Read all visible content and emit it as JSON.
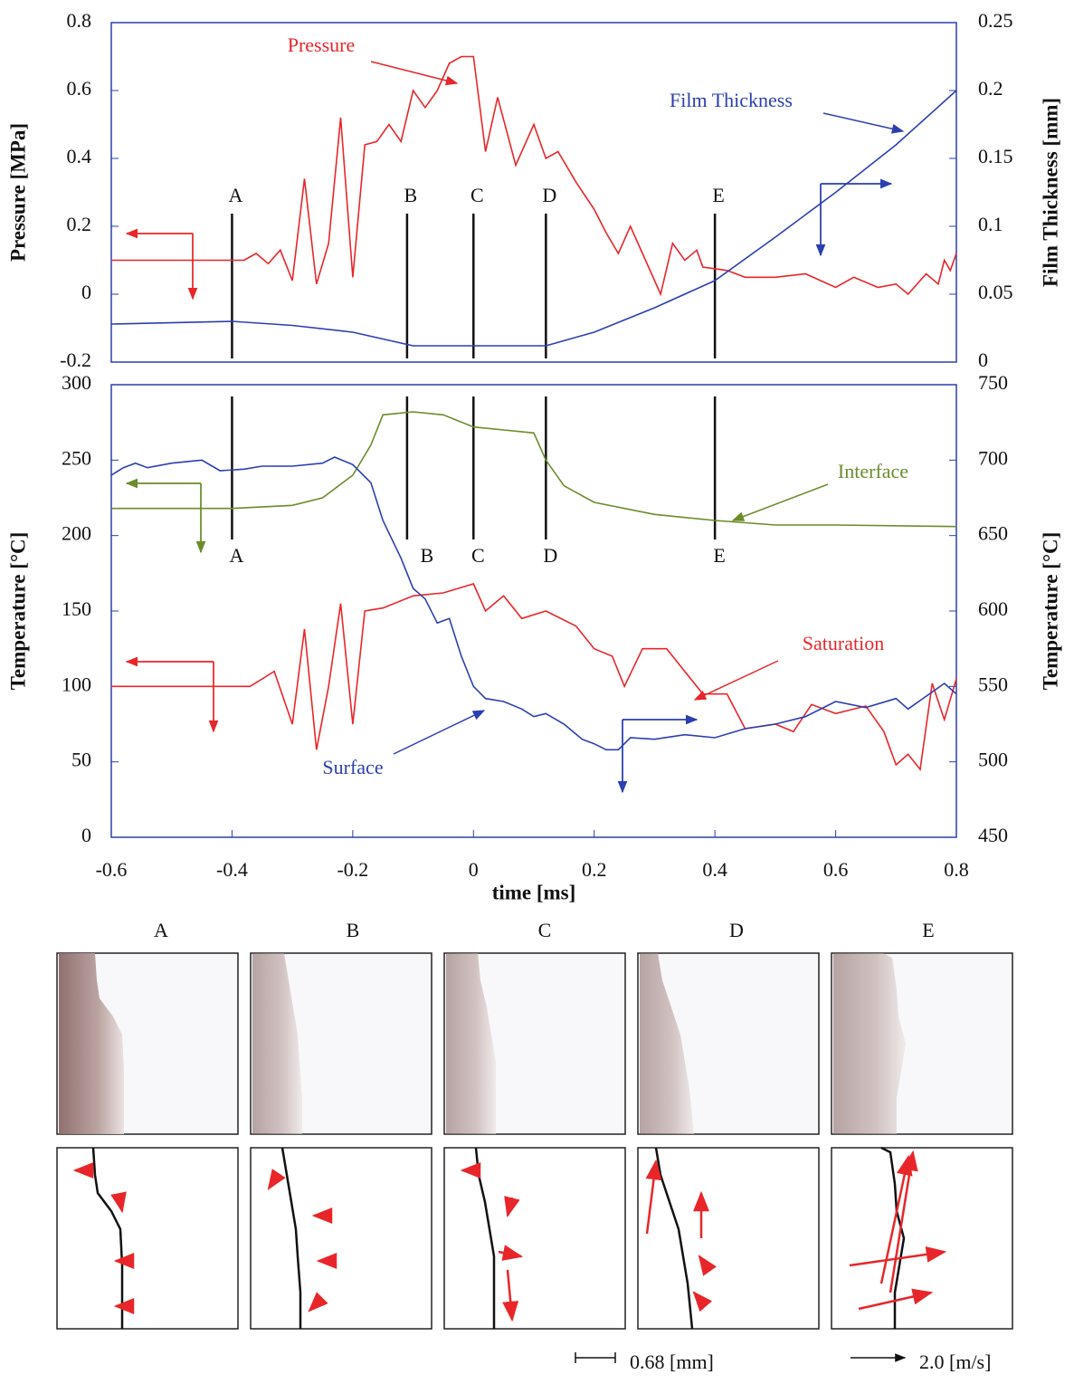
{
  "chart_data": [
    {
      "type": "line",
      "ylabel": "Pressure [MPa]",
      "y2label": "Film Thickness [mm]",
      "xlim": [
        -0.6,
        0.8
      ],
      "ylim": [
        -0.2,
        0.8
      ],
      "yticks": [
        -0.2,
        0,
        0.2,
        0.4,
        0.6,
        0.8
      ],
      "y2lim": [
        0,
        0.25
      ],
      "y2ticks": [
        0,
        0.05,
        0.1,
        0.15,
        0.2,
        0.25
      ],
      "markers": {
        "labels": [
          "A",
          "B",
          "C",
          "D",
          "E"
        ],
        "x": [
          -0.4,
          -0.11,
          0,
          0.12,
          0.4
        ]
      },
      "series": [
        {
          "name": "Pressure",
          "color": "#e8262a",
          "axis": "y",
          "x": [
            -0.6,
            -0.4,
            -0.38,
            -0.36,
            -0.34,
            -0.32,
            -0.3,
            -0.28,
            -0.26,
            -0.24,
            -0.22,
            -0.2,
            -0.18,
            -0.16,
            -0.14,
            -0.12,
            -0.1,
            -0.08,
            -0.06,
            -0.04,
            -0.02,
            0,
            0.02,
            0.04,
            0.07,
            0.1,
            0.12,
            0.14,
            0.17,
            0.2,
            0.22,
            0.24,
            0.26,
            0.28,
            0.31,
            0.33,
            0.35,
            0.37,
            0.38,
            0.42,
            0.45,
            0.5,
            0.55,
            0.6,
            0.63,
            0.67,
            0.7,
            0.72,
            0.75,
            0.77,
            0.78,
            0.79,
            0.8
          ],
          "values": [
            0.1,
            0.1,
            0.1,
            0.12,
            0.09,
            0.13,
            0.04,
            0.34,
            0.03,
            0.15,
            0.52,
            0.05,
            0.44,
            0.45,
            0.5,
            0.45,
            0.6,
            0.55,
            0.6,
            0.68,
            0.7,
            0.7,
            0.42,
            0.58,
            0.38,
            0.5,
            0.4,
            0.42,
            0.33,
            0.25,
            0.18,
            0.12,
            0.2,
            0.12,
            0,
            0.15,
            0.1,
            0.13,
            0.08,
            0.07,
            0.05,
            0.05,
            0.06,
            0.02,
            0.05,
            0.02,
            0.03,
            0,
            0.06,
            0.03,
            0.1,
            0.07,
            0.12
          ]
        },
        {
          "name": "Film Thickness",
          "color": "#2b3fb0",
          "axis": "y2",
          "x": [
            -0.6,
            -0.4,
            -0.3,
            -0.2,
            -0.1,
            0,
            0.12,
            0.2,
            0.3,
            0.4,
            0.5,
            0.6,
            0.7,
            0.8
          ],
          "values": [
            0.028,
            0.03,
            0.027,
            0.022,
            0.012,
            0.012,
            0.012,
            0.022,
            0.04,
            0.06,
            0.092,
            0.125,
            0.16,
            0.2
          ]
        }
      ]
    },
    {
      "type": "line",
      "ylabel": "Temperature [°C]",
      "y2label": "Temperature [°C]",
      "xlabel": "time [ms]",
      "xlim": [
        -0.6,
        0.8
      ],
      "xticks": [
        -0.6,
        -0.4,
        -0.2,
        0,
        0.2,
        0.4,
        0.6,
        0.8
      ],
      "ylim": [
        0,
        300
      ],
      "yticks": [
        0,
        50,
        100,
        150,
        200,
        250,
        300
      ],
      "y2lim": [
        450,
        750
      ],
      "y2ticks": [
        450,
        500,
        550,
        600,
        650,
        700,
        750
      ],
      "markers": {
        "labels": [
          "A",
          "B",
          "C",
          "D",
          "E"
        ],
        "x": [
          -0.4,
          -0.11,
          0,
          0.12,
          0.4
        ]
      },
      "series": [
        {
          "name": "Interface",
          "color": "#6b8c2a",
          "axis": "y2",
          "x": [
            -0.6,
            -0.4,
            -0.3,
            -0.25,
            -0.2,
            -0.17,
            -0.15,
            -0.1,
            -0.05,
            0,
            0.05,
            0.1,
            0.12,
            0.15,
            0.2,
            0.3,
            0.4,
            0.5,
            0.6,
            0.8
          ],
          "values": [
            668,
            668,
            670,
            675,
            690,
            710,
            730,
            732,
            730,
            722,
            720,
            718,
            700,
            683,
            672,
            664,
            660,
            657,
            657,
            656
          ]
        },
        {
          "name": "Saturation",
          "color": "#e8262a",
          "axis": "y",
          "x": [
            -0.6,
            -0.37,
            -0.35,
            -0.33,
            -0.3,
            -0.28,
            -0.26,
            -0.24,
            -0.22,
            -0.2,
            -0.18,
            -0.15,
            -0.1,
            -0.05,
            0,
            0.02,
            0.05,
            0.08,
            0.12,
            0.17,
            0.2,
            0.23,
            0.25,
            0.28,
            0.32,
            0.35,
            0.38,
            0.42,
            0.45,
            0.5,
            0.53,
            0.56,
            0.6,
            0.65,
            0.68,
            0.7,
            0.72,
            0.74,
            0.76,
            0.78,
            0.8
          ],
          "values": [
            100,
            100,
            105,
            110,
            75,
            138,
            58,
            100,
            155,
            75,
            150,
            152,
            160,
            162,
            168,
            150,
            160,
            145,
            150,
            140,
            125,
            120,
            100,
            125,
            125,
            110,
            95,
            95,
            72,
            75,
            70,
            88,
            82,
            87,
            70,
            48,
            55,
            45,
            102,
            78,
            105
          ]
        },
        {
          "name": "Surface",
          "color": "#2b3fb0",
          "axis": "y2",
          "x": [
            -0.6,
            -0.58,
            -0.56,
            -0.54,
            -0.5,
            -0.45,
            -0.42,
            -0.38,
            -0.35,
            -0.3,
            -0.25,
            -0.23,
            -0.2,
            -0.17,
            -0.15,
            -0.12,
            -0.1,
            -0.08,
            -0.06,
            -0.04,
            -0.02,
            0,
            0.02,
            0.05,
            0.08,
            0.1,
            0.12,
            0.15,
            0.18,
            0.2,
            0.22,
            0.24,
            0.26,
            0.3,
            0.35,
            0.4,
            0.45,
            0.5,
            0.55,
            0.6,
            0.65,
            0.7,
            0.72,
            0.78,
            0.8
          ],
          "values": [
            690,
            695,
            698,
            695,
            698,
            700,
            693,
            694,
            696,
            696,
            698,
            702,
            697,
            685,
            660,
            635,
            615,
            608,
            592,
            595,
            570,
            550,
            542,
            540,
            535,
            530,
            532,
            525,
            515,
            512,
            508,
            508,
            516,
            515,
            518,
            516,
            522,
            525,
            530,
            540,
            536,
            542,
            535,
            552,
            545
          ]
        }
      ]
    }
  ],
  "panels": {
    "labels": [
      "A",
      "B",
      "C",
      "D",
      "E"
    ],
    "scale_length": "0.68 [mm]",
    "scale_velocity": "2.0 [m/s]"
  }
}
